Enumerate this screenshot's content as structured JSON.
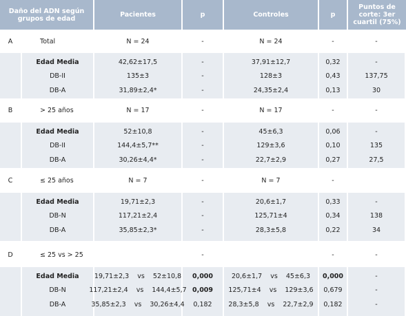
{
  "table": {
    "header": [
      "Daño del ADN según grupos de edad",
      "Pacientes",
      "p",
      "Controles",
      "p",
      "Puntos de corte: 3er cuartil (75%)"
    ],
    "sections": [
      {
        "row": [
          "A",
          "Total",
          "N = 24",
          "-",
          "N = 24",
          "-",
          "-"
        ],
        "rows": [
          [
            null,
            "Edad Media",
            "42,62±17,5",
            "-",
            "37,91±12,7",
            "0,32",
            "-"
          ],
          [
            null,
            "DB-II",
            "135±3",
            "-",
            "128±3",
            "0,43",
            "137,75"
          ],
          [
            null,
            "DB-A",
            "31,89±2,4*",
            "-",
            "24,35±2,4",
            "0,13",
            "30"
          ]
        ]
      },
      {
        "row": [
          "B",
          "> 25 años",
          "N = 17",
          "-",
          "N = 17",
          "-",
          "-"
        ],
        "rows": [
          [
            null,
            "Edad Media",
            "52±10,8",
            "-",
            "45±6,3",
            "0,06",
            "-"
          ],
          [
            null,
            "DB-II",
            "144,4±5,7**",
            "-",
            "129±3,6",
            "0,10",
            "135"
          ],
          [
            null,
            "DB-A",
            "30,26±4,4*",
            "-",
            "22,7±2,9",
            "0,27",
            "27,5"
          ]
        ]
      },
      {
        "row": [
          "C",
          "≤ 25 años",
          "N = 7",
          "-",
          "N = 7",
          "-",
          null
        ],
        "rows": [
          [
            null,
            "Edad Media",
            "19,71±2,3",
            "-",
            "20,6±1,7",
            "0,33",
            "-"
          ],
          [
            null,
            "DB-N",
            "117,21±2,4",
            "-",
            "125,71±4",
            "0,34",
            "138"
          ],
          [
            null,
            "DB-A",
            "35,85±2,3*",
            "-",
            "28,3±5,8",
            "0,22",
            "34"
          ]
        ]
      },
      {
        "row": [
          "D",
          "≤ 25 vs > 25",
          null,
          "-",
          null,
          "-",
          "-"
        ],
        "rows": [
          [
            null,
            "Edad Media",
            "19,71±2,3    vs    52±10,8",
            "0,000",
            "20,6±1,7    vs    45±6,3",
            "0,000",
            "-"
          ],
          [
            null,
            "DB-N",
            "117,21±2,4    vs    144,4±5,7",
            "0,009",
            "125,71±4    vs    129±3,6",
            "0,679",
            "-"
          ],
          [
            null,
            "DB-A",
            "35,85±2,3    vs    30,26±4,4",
            "0,182",
            "28,3±5,8    vs    22,7±2,9",
            "0,182",
            "-"
          ]
        ]
      }
    ]
  }
}
